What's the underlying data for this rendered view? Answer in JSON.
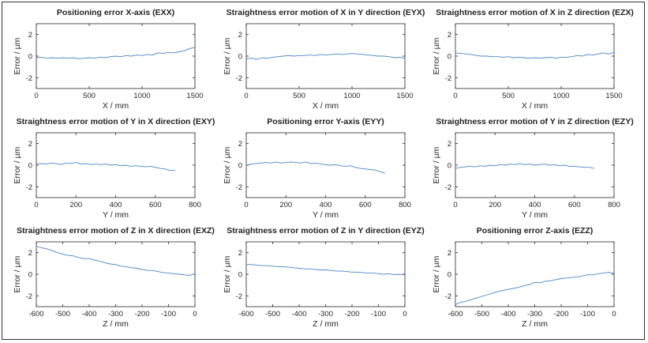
{
  "colors": {
    "line": "#4a86c5",
    "axis": "#262626"
  },
  "chart_data": [
    {
      "type": "line",
      "title": "Positioning error X-axis (EXX)",
      "xlabel": "X / mm",
      "ylabel": "Error / µm",
      "xlim": [
        0,
        1500
      ],
      "ylim": [
        -3,
        3
      ],
      "xticks": [
        0,
        500,
        1000,
        1500
      ],
      "yticks": [
        -2,
        0,
        2
      ],
      "x": [
        0,
        50,
        100,
        150,
        200,
        250,
        300,
        350,
        400,
        450,
        500,
        550,
        600,
        650,
        700,
        750,
        800,
        850,
        900,
        950,
        1000,
        1050,
        1100,
        1150,
        1200,
        1250,
        1300,
        1350,
        1400,
        1450,
        1500
      ],
      "y": [
        -0.15,
        -0.1,
        -0.2,
        -0.15,
        -0.2,
        -0.15,
        -0.2,
        -0.15,
        -0.25,
        -0.2,
        -0.15,
        -0.2,
        -0.1,
        -0.15,
        -0.05,
        0.0,
        -0.05,
        0.05,
        0.0,
        0.1,
        0.05,
        0.15,
        0.1,
        0.3,
        0.25,
        0.35,
        0.3,
        0.4,
        0.5,
        0.7,
        0.8
      ]
    },
    {
      "type": "line",
      "title": "Straightness error motion of X in Y direction (EYX)",
      "xlabel": "X / mm",
      "ylabel": "Error / µm",
      "xlim": [
        0,
        1500
      ],
      "ylim": [
        -3,
        3
      ],
      "xticks": [
        0,
        500,
        1000,
        1500
      ],
      "yticks": [
        -2,
        0,
        2
      ],
      "x": [
        0,
        50,
        100,
        150,
        200,
        250,
        300,
        350,
        400,
        450,
        500,
        550,
        600,
        650,
        700,
        750,
        800,
        850,
        900,
        950,
        1000,
        1050,
        1100,
        1150,
        1200,
        1250,
        1300,
        1350,
        1400,
        1450,
        1500
      ],
      "y": [
        -0.25,
        -0.2,
        -0.3,
        -0.15,
        -0.2,
        -0.1,
        -0.05,
        0.0,
        0.05,
        0.0,
        0.05,
        0.05,
        0.1,
        0.05,
        0.15,
        0.1,
        0.15,
        0.2,
        0.15,
        0.2,
        0.25,
        0.2,
        0.15,
        0.1,
        0.05,
        0.0,
        0.0,
        -0.05,
        -0.15,
        -0.1,
        -0.2
      ]
    },
    {
      "type": "line",
      "title": "Straightness error motion of X in Z direction (EZX)",
      "xlabel": "X / mm",
      "ylabel": "Error / µm",
      "xlim": [
        0,
        1500
      ],
      "ylim": [
        -3,
        3
      ],
      "xticks": [
        0,
        500,
        1000,
        1500
      ],
      "yticks": [
        -2,
        0,
        2
      ],
      "x": [
        0,
        50,
        100,
        150,
        200,
        250,
        300,
        350,
        400,
        450,
        500,
        550,
        600,
        650,
        700,
        750,
        800,
        850,
        900,
        950,
        1000,
        1050,
        1100,
        1150,
        1200,
        1250,
        1300,
        1350,
        1400,
        1450,
        1500
      ],
      "y": [
        0.3,
        0.25,
        0.2,
        0.15,
        0.05,
        0.0,
        0.0,
        -0.05,
        -0.05,
        -0.1,
        -0.05,
        -0.15,
        -0.1,
        -0.15,
        -0.2,
        -0.15,
        -0.2,
        -0.15,
        -0.1,
        -0.2,
        -0.1,
        -0.1,
        -0.05,
        0.05,
        0.0,
        0.15,
        0.1,
        0.2,
        0.3,
        0.2,
        0.35
      ]
    },
    {
      "type": "line",
      "title": "Straightness error motion of Y in X direction (EXY)",
      "xlabel": "Y / mm",
      "ylabel": "Error / µm",
      "xlim": [
        0,
        800
      ],
      "ylim": [
        -3,
        3
      ],
      "xticks": [
        0,
        200,
        400,
        600,
        800
      ],
      "yticks": [
        -2,
        0,
        2
      ],
      "x": [
        0,
        25,
        50,
        75,
        100,
        125,
        150,
        175,
        200,
        225,
        250,
        275,
        300,
        325,
        350,
        375,
        400,
        425,
        450,
        475,
        500,
        525,
        550,
        575,
        600,
        625,
        650,
        675,
        700
      ],
      "y": [
        0.1,
        0.15,
        0.1,
        0.2,
        0.15,
        0.05,
        0.2,
        0.15,
        0.25,
        0.1,
        0.15,
        0.05,
        0.1,
        0.05,
        0.1,
        0.0,
        0.05,
        -0.05,
        0.0,
        -0.1,
        -0.05,
        -0.1,
        -0.15,
        -0.1,
        -0.2,
        -0.3,
        -0.35,
        -0.5,
        -0.45
      ]
    },
    {
      "type": "line",
      "title": "Positioning error Y-axis (EYY)",
      "xlabel": "Y / mm",
      "ylabel": "Error / µm",
      "xlim": [
        0,
        800
      ],
      "ylim": [
        -3,
        3
      ],
      "xticks": [
        0,
        200,
        400,
        600,
        800
      ],
      "yticks": [
        -2,
        0,
        2
      ],
      "x": [
        0,
        25,
        50,
        75,
        100,
        125,
        150,
        175,
        200,
        225,
        250,
        275,
        300,
        325,
        350,
        375,
        400,
        425,
        450,
        475,
        500,
        525,
        550,
        575,
        600,
        625,
        650,
        675,
        700
      ],
      "y": [
        0.0,
        0.1,
        0.15,
        0.2,
        0.25,
        0.2,
        0.3,
        0.2,
        0.25,
        0.3,
        0.25,
        0.2,
        0.3,
        0.15,
        0.2,
        0.1,
        0.05,
        0.0,
        0.05,
        -0.05,
        -0.1,
        -0.05,
        -0.2,
        -0.3,
        -0.35,
        -0.4,
        -0.45,
        -0.6,
        -0.75
      ]
    },
    {
      "type": "line",
      "title": "Straightness error motion of Y in Z direction (EZY)",
      "xlabel": "Y / mm",
      "ylabel": "Error / µm",
      "xlim": [
        0,
        800
      ],
      "ylim": [
        -3,
        3
      ],
      "xticks": [
        0,
        200,
        400,
        600,
        800
      ],
      "yticks": [
        -2,
        0,
        2
      ],
      "x": [
        0,
        25,
        50,
        75,
        100,
        125,
        150,
        175,
        200,
        225,
        250,
        275,
        300,
        325,
        350,
        375,
        400,
        425,
        450,
        475,
        500,
        525,
        550,
        575,
        600,
        625,
        650,
        675,
        700
      ],
      "y": [
        -0.3,
        -0.2,
        -0.15,
        -0.1,
        -0.15,
        -0.05,
        -0.1,
        0.0,
        -0.05,
        0.05,
        0.0,
        0.1,
        0.05,
        0.15,
        0.05,
        0.1,
        0.0,
        0.05,
        0.1,
        0.0,
        0.05,
        -0.05,
        0.0,
        -0.1,
        -0.1,
        -0.15,
        -0.2,
        -0.2,
        -0.3
      ]
    },
    {
      "type": "line",
      "title": "Straightness error motion of Z in X direction (EXZ)",
      "xlabel": "Z / mm",
      "ylabel": "Error / µm",
      "xlim": [
        -600,
        0
      ],
      "ylim": [
        -3,
        3
      ],
      "xticks": [
        -600,
        -500,
        -400,
        -300,
        -200,
        -100,
        0
      ],
      "yticks": [
        -2,
        0,
        2
      ],
      "x": [
        -600,
        -580,
        -560,
        -540,
        -520,
        -500,
        -480,
        -460,
        -440,
        -420,
        -400,
        -380,
        -360,
        -340,
        -320,
        -300,
        -280,
        -260,
        -240,
        -220,
        -200,
        -180,
        -160,
        -140,
        -120,
        -100,
        -80,
        -60,
        -40,
        -20,
        0
      ],
      "y": [
        2.6,
        2.45,
        2.35,
        2.2,
        2.0,
        1.85,
        1.75,
        1.7,
        1.55,
        1.45,
        1.45,
        1.3,
        1.2,
        1.05,
        0.95,
        0.9,
        0.75,
        0.7,
        0.6,
        0.55,
        0.45,
        0.35,
        0.35,
        0.25,
        0.15,
        0.1,
        0.05,
        0.0,
        -0.05,
        -0.1,
        0.05
      ]
    },
    {
      "type": "line",
      "title": "Straightness error motion of Z in Y direction (EYZ)",
      "xlabel": "Z / mm",
      "ylabel": "Error / µm",
      "xlim": [
        -600,
        0
      ],
      "ylim": [
        -3,
        3
      ],
      "xticks": [
        -600,
        -500,
        -400,
        -300,
        -200,
        -100,
        0
      ],
      "yticks": [
        -2,
        0,
        2
      ],
      "x": [
        -600,
        -580,
        -560,
        -540,
        -520,
        -500,
        -480,
        -460,
        -440,
        -420,
        -400,
        -380,
        -360,
        -340,
        -320,
        -300,
        -280,
        -260,
        -240,
        -220,
        -200,
        -180,
        -160,
        -140,
        -120,
        -100,
        -80,
        -60,
        -40,
        -20,
        0
      ],
      "y": [
        0.9,
        0.9,
        0.85,
        0.8,
        0.8,
        0.75,
        0.7,
        0.7,
        0.65,
        0.6,
        0.55,
        0.5,
        0.5,
        0.45,
        0.4,
        0.4,
        0.35,
        0.3,
        0.3,
        0.25,
        0.2,
        0.2,
        0.15,
        0.1,
        0.1,
        0.05,
        0.0,
        0.05,
        -0.05,
        0.0,
        -0.05
      ]
    },
    {
      "type": "line",
      "title": "Positioning error Z-axis (EZZ)",
      "xlabel": "Z / mm",
      "ylabel": "Error / µm",
      "xlim": [
        -600,
        0
      ],
      "ylim": [
        -3,
        3
      ],
      "xticks": [
        -600,
        -500,
        -400,
        -300,
        -200,
        -100,
        0
      ],
      "yticks": [
        -2,
        0,
        2
      ],
      "x": [
        -600,
        -580,
        -560,
        -540,
        -520,
        -500,
        -480,
        -460,
        -440,
        -420,
        -400,
        -380,
        -360,
        -340,
        -320,
        -300,
        -280,
        -260,
        -240,
        -220,
        -200,
        -180,
        -160,
        -140,
        -120,
        -100,
        -80,
        -60,
        -40,
        -20,
        0
      ],
      "y": [
        -2.8,
        -2.6,
        -2.5,
        -2.35,
        -2.2,
        -2.05,
        -1.9,
        -1.75,
        -1.6,
        -1.5,
        -1.4,
        -1.3,
        -1.2,
        -1.05,
        -0.95,
        -0.75,
        -0.8,
        -0.65,
        -0.6,
        -0.5,
        -0.4,
        -0.35,
        -0.3,
        -0.25,
        -0.15,
        -0.05,
        -0.05,
        0.05,
        0.1,
        0.2,
        0.05
      ]
    }
  ]
}
